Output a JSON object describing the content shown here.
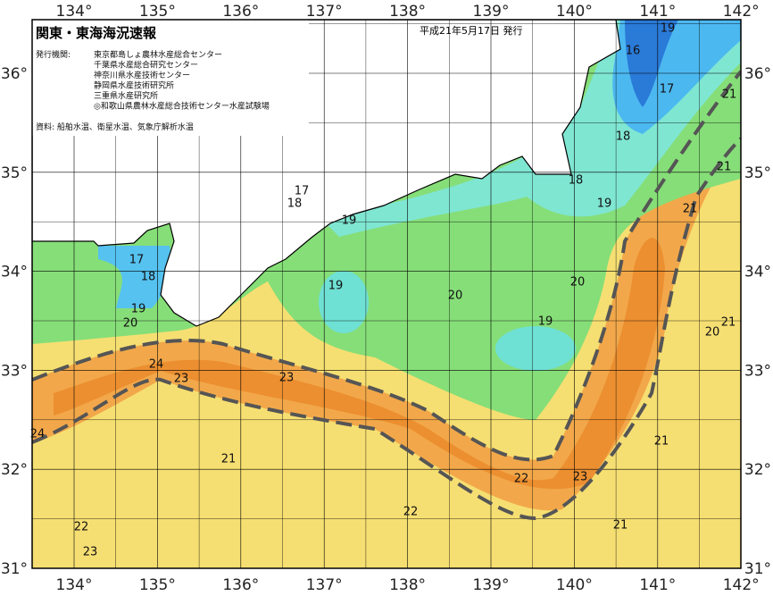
{
  "title": "関東・東海海況速報",
  "date": "平成21年5月17日 発行",
  "issuer_label": "発行機関:",
  "issuers": [
    "東京都島しょ農林水産総合センター",
    "千葉県水産総合研究センター",
    "神奈川県水産技術センター",
    "静岡県水産技術研究所",
    "三重県水産研究所",
    "◎和歌山県農林水産総合技術センター水産試験場"
  ],
  "source": "資料: 船舶水温、衛星水温、気象庁解析水温",
  "lon_labels": [
    "134°",
    "135°",
    "136°",
    "137°",
    "138°",
    "139°",
    "140°",
    "141°",
    "142°"
  ],
  "lat_labels": [
    "36°",
    "35°",
    "34°",
    "33°",
    "32°",
    "31°"
  ],
  "contour_labels": [
    19,
    16,
    17,
    21,
    18,
    21,
    18,
    19,
    21,
    17,
    18,
    19,
    17,
    18,
    19,
    20,
    19,
    20,
    20,
    19,
    21,
    20,
    24,
    23,
    23,
    24,
    21,
    21,
    22,
    23,
    22,
    22,
    23,
    21
  ]
}
